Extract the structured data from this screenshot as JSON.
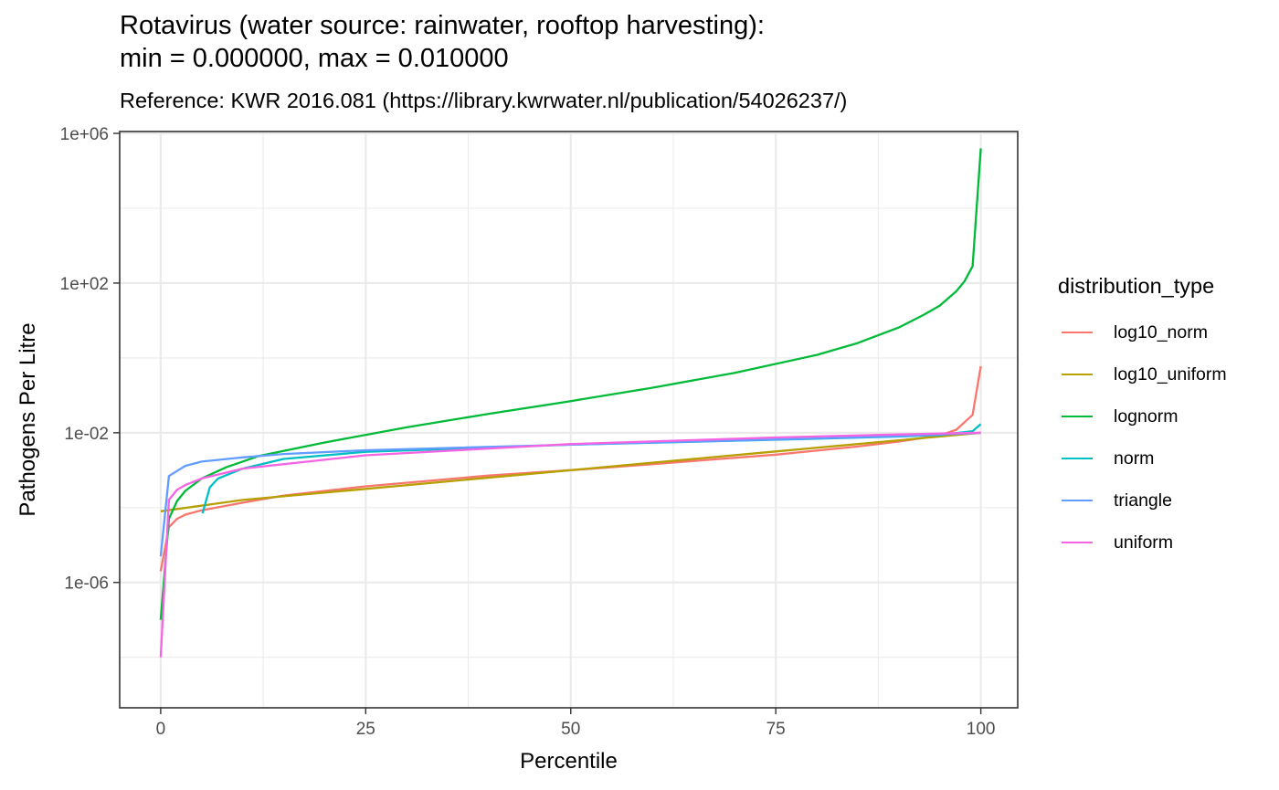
{
  "chart_data": {
    "type": "line",
    "title": "Rotavirus (water source: rainwater, rooftop harvesting):\nmin = 0.000000, max = 0.010000",
    "subtitle": "Reference: KWR 2016.081 (https://library.kwrwater.nl/publication/54026237/)",
    "xlabel": "Percentile",
    "ylabel": "Pathogens Per Litre",
    "xlim": [
      -5,
      104.5
    ],
    "ylim_log10": [
      -9.35,
      6.05
    ],
    "y_scale": "log10",
    "x_ticks": [
      0,
      25,
      50,
      75,
      100
    ],
    "x_tick_labels": [
      "0",
      "25",
      "50",
      "75",
      "100"
    ],
    "y_ticks_log10": [
      -6,
      -2,
      2,
      6
    ],
    "y_tick_labels": [
      "1e-06",
      "1e-02",
      "1e+02",
      "1e+06"
    ],
    "grid": true,
    "legend_title": "distribution_type",
    "legend_position": "right",
    "series": [
      {
        "name": "log10_norm",
        "color": "#F8766D",
        "x": [
          0,
          1,
          2,
          3,
          5,
          10,
          15,
          25,
          40,
          50,
          60,
          75,
          85,
          90,
          95,
          97,
          99,
          100
        ],
        "y": [
          2e-06,
          3e-05,
          5e-05,
          6.5e-05,
          8.5e-05,
          0.000135,
          0.00021,
          0.00037,
          0.00072,
          0.001,
          0.00145,
          0.0026,
          0.0043,
          0.0058,
          0.0085,
          0.012,
          0.03,
          0.6
        ]
      },
      {
        "name": "log10_uniform",
        "color": "#B79F00",
        "x": [
          0,
          10,
          25,
          50,
          75,
          90,
          100
        ],
        "y": [
          8e-05,
          0.00016,
          0.000316,
          0.001,
          0.00316,
          0.0063,
          0.01
        ]
      },
      {
        "name": "lognorm",
        "color": "#00BA38",
        "x": [
          0,
          1,
          2,
          3,
          5,
          8,
          12,
          20,
          30,
          40,
          50,
          60,
          70,
          80,
          85,
          90,
          93,
          95,
          97,
          98,
          99,
          100
        ],
        "y": [
          1e-07,
          5e-05,
          0.00015,
          0.00028,
          0.0006,
          0.0012,
          0.0024,
          0.0055,
          0.014,
          0.032,
          0.07,
          0.16,
          0.4,
          1.2,
          2.5,
          6.5,
          14,
          25,
          60,
          110,
          280,
          400000
        ]
      },
      {
        "name": "norm",
        "color": "#00BFC4",
        "x": [
          5.1,
          6,
          7,
          10,
          15,
          25,
          50,
          75,
          90,
          95,
          99,
          100
        ],
        "y": [
          7e-05,
          0.00035,
          0.0006,
          0.0011,
          0.002,
          0.0031,
          0.0048,
          0.0065,
          0.0079,
          0.0087,
          0.011,
          0.017
        ]
      },
      {
        "name": "triangle",
        "color": "#619CFF",
        "x": [
          0,
          1,
          2,
          3,
          5,
          10,
          15,
          25,
          50,
          75,
          90,
          100
        ],
        "y": [
          5e-06,
          0.0007,
          0.00095,
          0.0013,
          0.0017,
          0.0022,
          0.0027,
          0.0034,
          0.0048,
          0.0066,
          0.0081,
          0.0099
        ]
      },
      {
        "name": "uniform",
        "color": "#F564E3",
        "x": [
          0,
          1,
          2,
          3,
          5,
          10,
          25,
          50,
          75,
          90,
          100
        ],
        "y": [
          1e-08,
          0.00016,
          0.0003,
          0.0004,
          0.0006,
          0.0011,
          0.0025,
          0.005,
          0.0075,
          0.009,
          0.01
        ]
      }
    ]
  }
}
